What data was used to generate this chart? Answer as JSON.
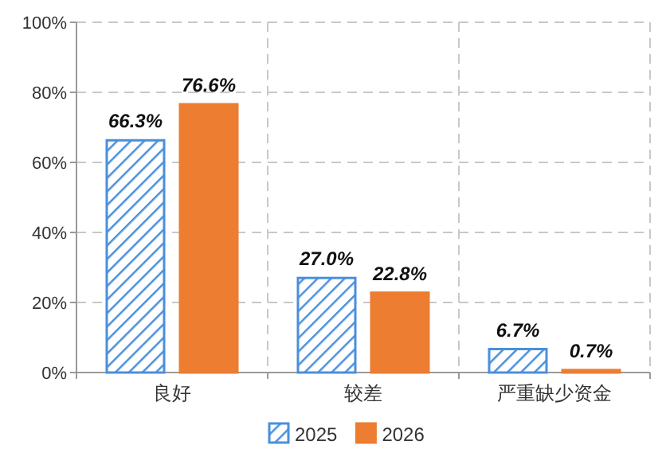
{
  "chart_data": {
    "type": "bar",
    "categories": [
      "良好",
      "较差",
      "严重缺少资金"
    ],
    "series": [
      {
        "name": "2025",
        "color": "#4a8fdc",
        "values": [
          66.3,
          27.0,
          6.7
        ],
        "value_labels": [
          "66.3%",
          "27.0%",
          "6.7%"
        ]
      },
      {
        "name": "2026",
        "color": "#ed7d31",
        "values": [
          76.6,
          22.8,
          0.7
        ],
        "value_labels": [
          "76.6%",
          "22.8%",
          "0.7%"
        ]
      }
    ],
    "ylim": [
      0,
      100
    ],
    "yticks": [
      {
        "value": 0,
        "label": "0%"
      },
      {
        "value": 20,
        "label": "20%"
      },
      {
        "value": 40,
        "label": "40%"
      },
      {
        "value": 60,
        "label": "60%"
      },
      {
        "value": 80,
        "label": "80%"
      },
      {
        "value": 100,
        "label": "100%"
      }
    ],
    "grid": true,
    "legend": "bottom"
  }
}
